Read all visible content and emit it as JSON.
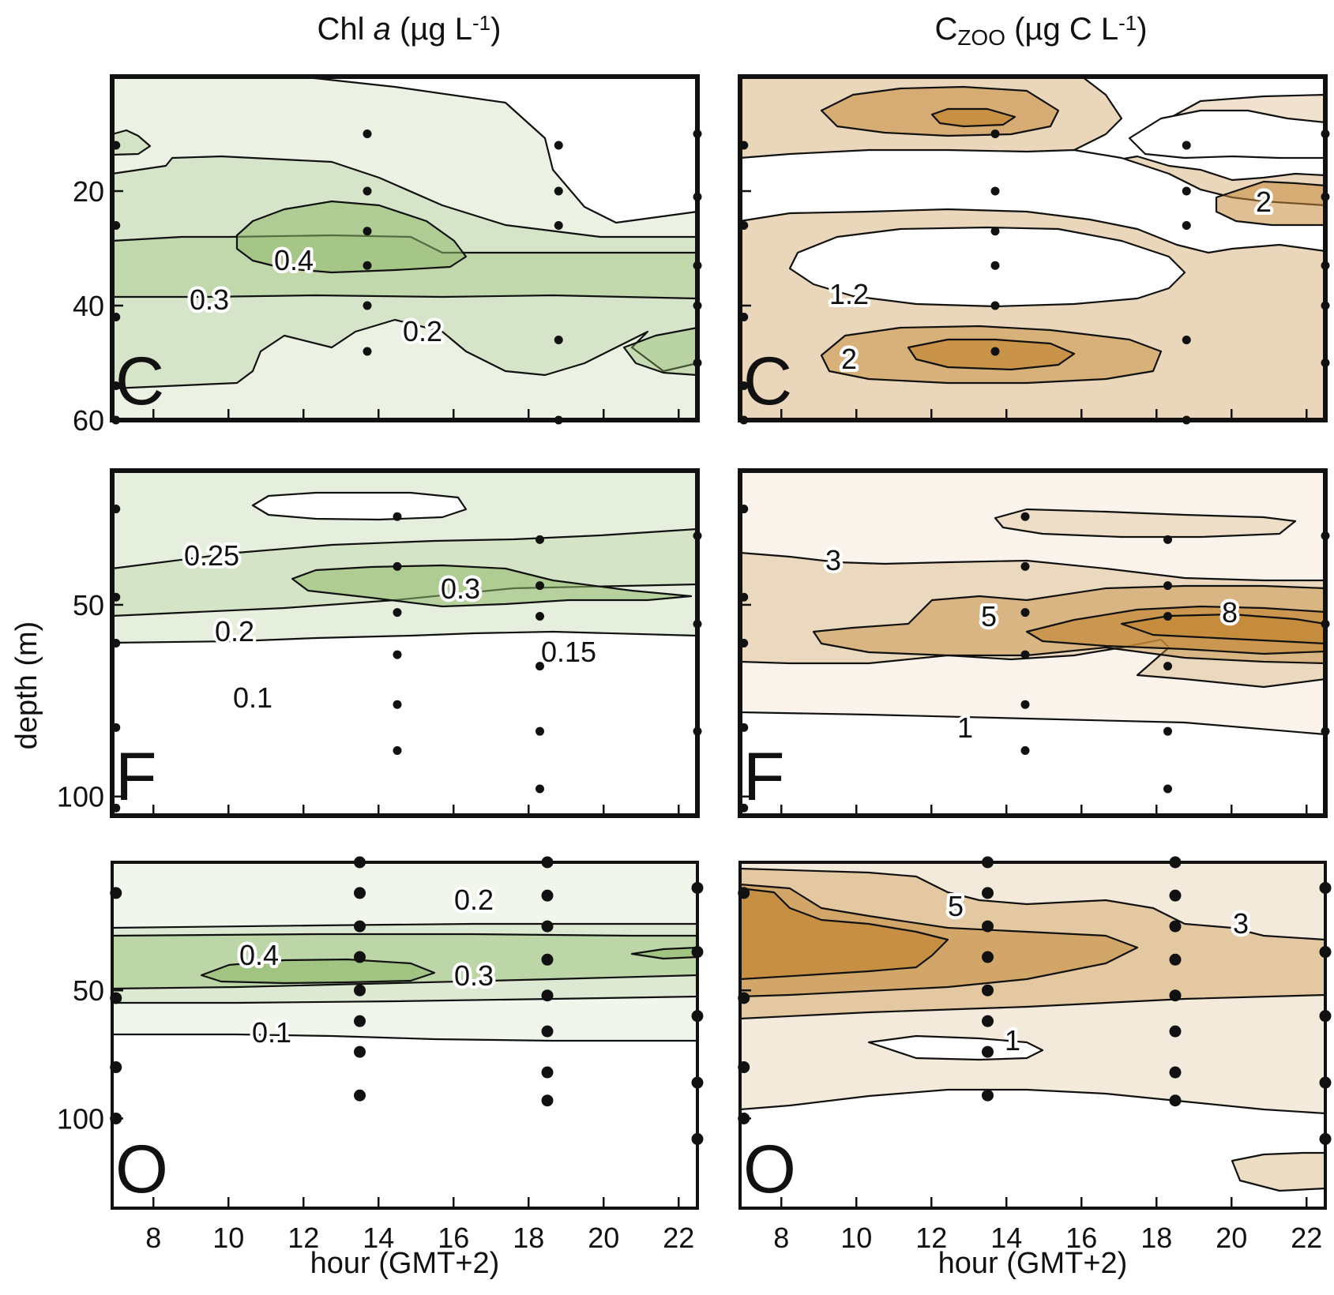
{
  "column_titles": [
    {
      "main": "Chl ",
      "italic": "a",
      "rest": " (µg L",
      "sup": "-1",
      "end": ")"
    },
    {
      "main": "C",
      "sub": "ZOO",
      "rest": " (µg C L",
      "sup": "-1",
      "end": ")"
    }
  ],
  "colors": {
    "chl": "#8fb86a",
    "zoo": "#c48a3a",
    "frame": "#111111"
  },
  "chart_data": [
    {
      "type": "heatmap",
      "panel": "C",
      "variable": "Chl a",
      "xlabel": "",
      "ylabel": "",
      "xlim": [
        6.9,
        22.5
      ],
      "ylim": [
        60,
        0
      ],
      "xticks": [
        8,
        10,
        12,
        14,
        16,
        18,
        20,
        22
      ],
      "yticks": [
        20,
        40,
        60
      ],
      "contour_labels": [
        "0.4",
        "0.3",
        "0.2"
      ],
      "samples": [
        {
          "t": 7,
          "z": [
            12,
            26,
            42,
            54,
            60
          ]
        },
        {
          "t": 13.7,
          "z": [
            10,
            20,
            27,
            33,
            40,
            48
          ]
        },
        {
          "t": 18.8,
          "z": [
            12,
            20,
            26,
            46,
            60
          ]
        },
        {
          "t": 22.5,
          "z": [
            10,
            21,
            33,
            40,
            50
          ]
        }
      ]
    },
    {
      "type": "heatmap",
      "panel": "C",
      "variable": "CZOO",
      "xlabel": "",
      "ylabel": "",
      "xlim": [
        6.9,
        22.5
      ],
      "ylim": [
        60,
        0
      ],
      "xticks": [
        8,
        10,
        12,
        14,
        16,
        18,
        20,
        22
      ],
      "yticks": [
        20,
        40,
        60
      ],
      "contour_labels": [
        "2",
        "1.2",
        "2"
      ],
      "samples": [
        {
          "t": 7,
          "z": [
            12,
            26,
            42,
            54,
            60
          ]
        },
        {
          "t": 13.7,
          "z": [
            10,
            20,
            27,
            33,
            40,
            48
          ]
        },
        {
          "t": 18.8,
          "z": [
            12,
            20,
            26,
            46,
            60
          ]
        },
        {
          "t": 22.5,
          "z": [
            10,
            21,
            33,
            40,
            50
          ]
        }
      ]
    },
    {
      "type": "heatmap",
      "panel": "F",
      "variable": "Chl a",
      "xlabel": "",
      "ylabel": "depth (m)",
      "xlim": [
        6.9,
        22.5
      ],
      "ylim": [
        105,
        15
      ],
      "xticks": [
        8,
        10,
        12,
        14,
        16,
        18,
        20,
        22
      ],
      "yticks": [
        50,
        100
      ],
      "contour_labels": [
        "0.25",
        "0.3",
        "0.2",
        "0.15",
        "0.1"
      ],
      "samples": [
        {
          "t": 7,
          "z": [
            25,
            48,
            60,
            82,
            103
          ]
        },
        {
          "t": 14.5,
          "z": [
            27,
            40,
            52,
            63,
            76,
            88
          ]
        },
        {
          "t": 18.3,
          "z": [
            33,
            45,
            53,
            66,
            83,
            98
          ]
        },
        {
          "t": 22.5,
          "z": [
            32,
            55,
            83
          ]
        }
      ]
    },
    {
      "type": "heatmap",
      "panel": "F",
      "variable": "CZOO",
      "xlabel": "",
      "ylabel": "",
      "xlim": [
        6.9,
        22.5
      ],
      "ylim": [
        105,
        15
      ],
      "xticks": [
        8,
        10,
        12,
        14,
        16,
        18,
        20,
        22
      ],
      "yticks": [
        50,
        100
      ],
      "contour_labels": [
        "3",
        "5",
        "8",
        "1"
      ],
      "samples": [
        {
          "t": 7,
          "z": [
            25,
            48,
            60,
            82,
            103
          ]
        },
        {
          "t": 14.5,
          "z": [
            27,
            40,
            52,
            63,
            76,
            88
          ]
        },
        {
          "t": 18.3,
          "z": [
            33,
            45,
            53,
            66,
            83,
            98
          ]
        },
        {
          "t": 22.5,
          "z": [
            32,
            55,
            83
          ]
        }
      ]
    },
    {
      "type": "heatmap",
      "panel": "O",
      "variable": "Chl a",
      "xlabel": "hour (GMT+2)",
      "ylabel": "",
      "xlim": [
        6.9,
        22.5
      ],
      "ylim": [
        135,
        0
      ],
      "xticks": [
        8,
        10,
        12,
        14,
        16,
        18,
        20,
        22
      ],
      "yticks": [
        50,
        100
      ],
      "contour_labels": [
        "0.2",
        "0.4",
        "0.3",
        "0.1"
      ],
      "samples": [
        {
          "t": 7,
          "z": [
            12,
            53,
            80,
            100
          ]
        },
        {
          "t": 13.5,
          "z": [
            0,
            12,
            25,
            37,
            50,
            62,
            74,
            91
          ]
        },
        {
          "t": 18.5,
          "z": [
            0,
            13,
            25,
            38,
            52,
            66,
            82,
            93
          ]
        },
        {
          "t": 22.5,
          "z": [
            10,
            35,
            60,
            86,
            108
          ]
        }
      ]
    },
    {
      "type": "heatmap",
      "panel": "O",
      "variable": "CZOO",
      "xlabel": "hour (GMT+2)",
      "ylabel": "",
      "xlim": [
        6.9,
        22.5
      ],
      "ylim": [
        135,
        0
      ],
      "xticks": [
        8,
        10,
        12,
        14,
        16,
        18,
        20,
        22
      ],
      "yticks": [
        50,
        100
      ],
      "contour_labels": [
        "5",
        "3",
        "1"
      ],
      "samples": [
        {
          "t": 7,
          "z": [
            12,
            53,
            80,
            100
          ]
        },
        {
          "t": 13.5,
          "z": [
            0,
            12,
            25,
            37,
            50,
            62,
            74,
            91
          ]
        },
        {
          "t": 18.5,
          "z": [
            0,
            13,
            25,
            38,
            52,
            66,
            82,
            93
          ]
        },
        {
          "t": 22.5,
          "z": [
            10,
            35,
            60,
            86,
            108
          ]
        }
      ]
    }
  ]
}
